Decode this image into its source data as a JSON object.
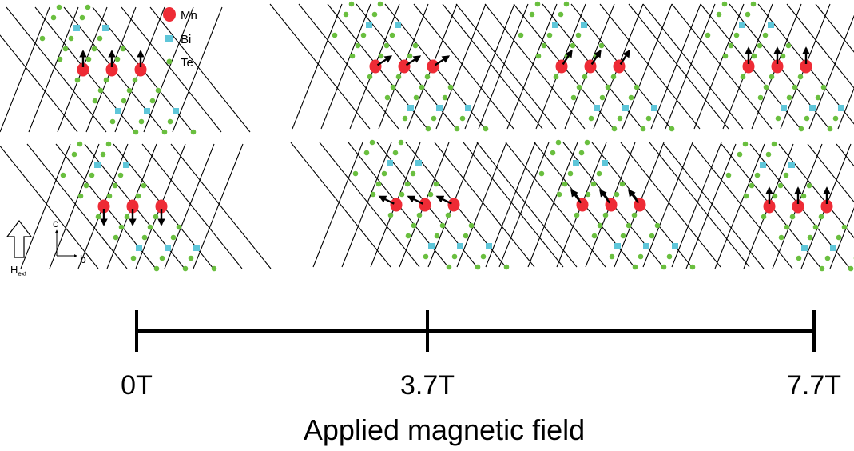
{
  "legend": [
    {
      "label": "Mn",
      "color": "#ee2b35"
    },
    {
      "label": "Bi",
      "color": "#5ec6d9"
    },
    {
      "label": "Te",
      "color": "#6abf3f"
    }
  ],
  "colors": {
    "bond": "#000000",
    "arrow": "#000000",
    "axis": "#000000"
  },
  "axes_inset": {
    "c_label": "c",
    "b_label": "b"
  },
  "field_indicator": {
    "label": "H",
    "subscript": "ext"
  },
  "panels": [
    {
      "id": "zero-field",
      "top_spin": "up",
      "bottom_spin": "down"
    },
    {
      "id": "field-3-7T",
      "top_spin": "tilt-up-right",
      "bottom_spin": "tilt-left"
    },
    {
      "id": "intermediate",
      "top_spin": "tilt-up-right-steep",
      "bottom_spin": "tilt-up-left"
    },
    {
      "id": "field-7-7T",
      "top_spin": "up",
      "bottom_spin": "up"
    }
  ],
  "timeline": {
    "ticks": [
      {
        "label": "0T",
        "value": 0
      },
      {
        "label": "3.7T",
        "value": 3.7
      },
      {
        "label": "7.7T",
        "value": 7.7
      }
    ],
    "title": "Applied magnetic field"
  }
}
